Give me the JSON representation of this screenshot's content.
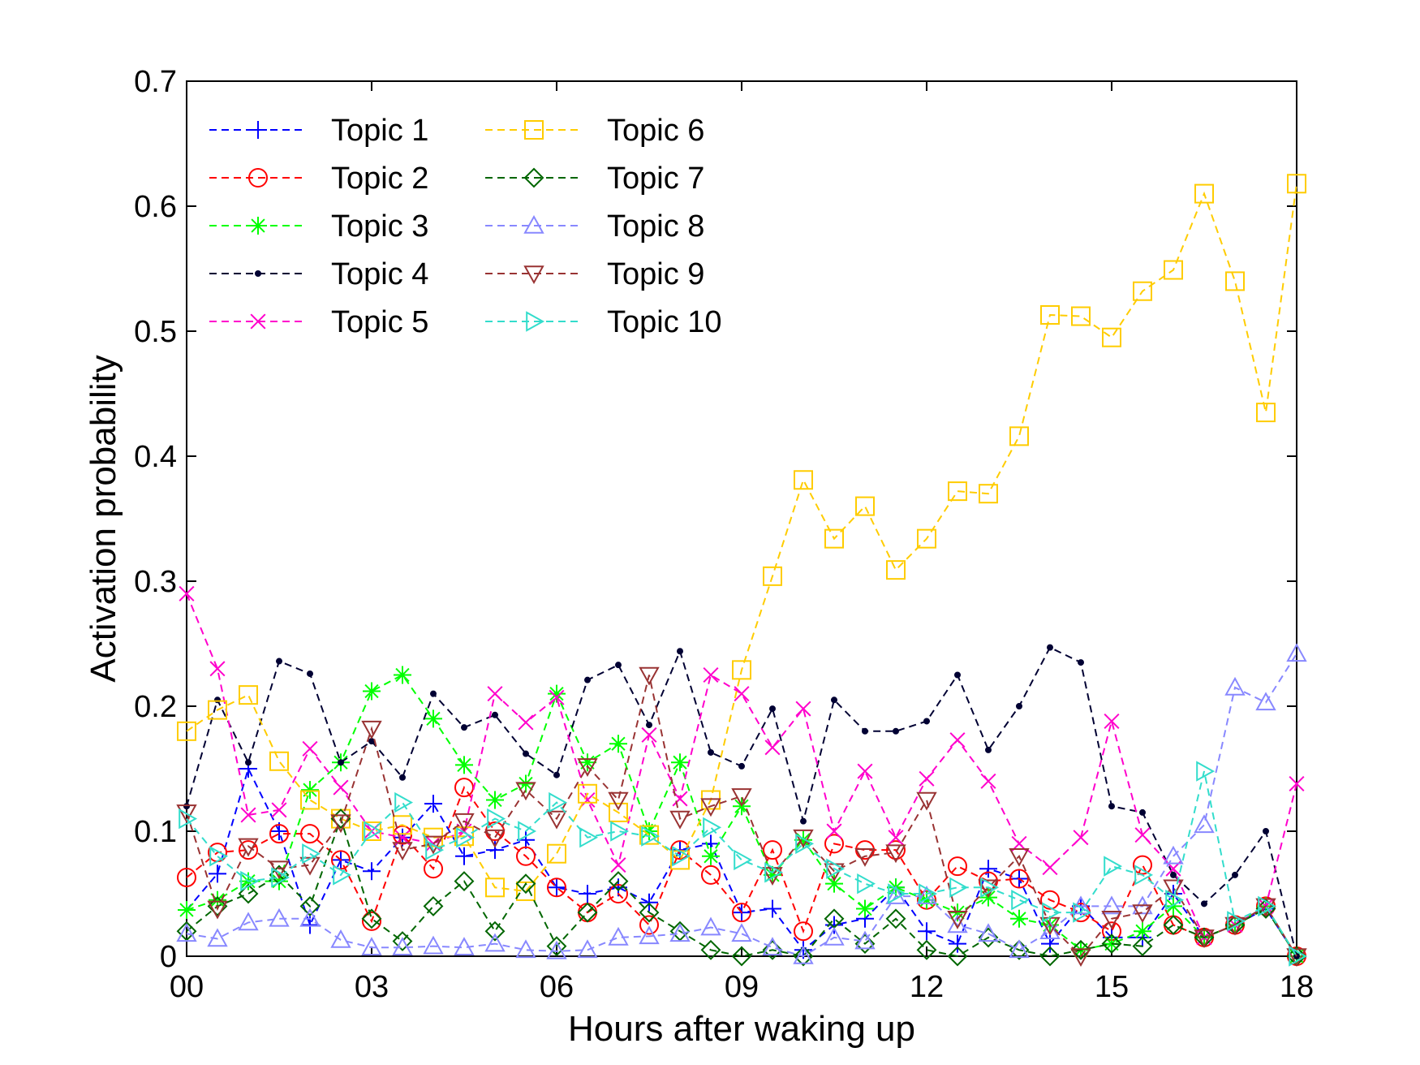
{
  "chart_data": {
    "type": "line",
    "title": "",
    "xlabel": "Hours after waking up",
    "ylabel": "Activation probability",
    "xlim": [
      0,
      18
    ],
    "ylim": [
      0,
      0.7
    ],
    "xticks": [
      0,
      3,
      6,
      9,
      12,
      15,
      18
    ],
    "xtick_labels": [
      "00",
      "03",
      "06",
      "09",
      "12",
      "15",
      "18"
    ],
    "yticks": [
      0,
      0.1,
      0.2,
      0.3,
      0.4,
      0.5,
      0.6,
      0.7
    ],
    "ytick_labels": [
      "0",
      "0.1",
      "0.2",
      "0.3",
      "0.4",
      "0.5",
      "0.6",
      "0.7"
    ],
    "grid": false,
    "legend_position": "top-left, two columns",
    "x": [
      0,
      0.5,
      1,
      1.5,
      2,
      2.5,
      3,
      3.5,
      4,
      4.5,
      5,
      5.5,
      6,
      6.5,
      7,
      7.5,
      8,
      8.5,
      9,
      9.5,
      10,
      10.5,
      11,
      11.5,
      12,
      12.5,
      13,
      13.5,
      14,
      14.5,
      15,
      15.5,
      16,
      16.5,
      17,
      17.5,
      18
    ],
    "series": [
      {
        "name": "Topic 1",
        "color": "#0000ff",
        "marker": "plus",
        "values": [
          0.037,
          0.066,
          0.15,
          0.1,
          0.025,
          0.077,
          0.068,
          0.095,
          0.122,
          0.08,
          0.085,
          0.093,
          0.055,
          0.05,
          0.055,
          0.043,
          0.085,
          0.09,
          0.035,
          0.038,
          0.005,
          0.025,
          0.03,
          0.055,
          0.02,
          0.01,
          0.07,
          0.062,
          0.01,
          0.04,
          0.015,
          0.015,
          0.05,
          0.015,
          0.025,
          0.038,
          0.0
        ]
      },
      {
        "name": "Topic 2",
        "color": "#ff0000",
        "marker": "circle",
        "values": [
          0.063,
          0.083,
          0.085,
          0.098,
          0.098,
          0.077,
          0.028,
          0.097,
          0.07,
          0.135,
          0.1,
          0.08,
          0.055,
          0.035,
          0.05,
          0.025,
          0.085,
          0.065,
          0.035,
          0.085,
          0.02,
          0.09,
          0.085,
          0.085,
          0.045,
          0.072,
          0.06,
          0.062,
          0.045,
          0.035,
          0.02,
          0.073,
          0.025,
          0.015,
          0.025,
          0.04,
          0.0
        ]
      },
      {
        "name": "Topic 3",
        "color": "#00ff00",
        "marker": "asterisk",
        "values": [
          0.037,
          0.045,
          0.06,
          0.06,
          0.133,
          0.155,
          0.212,
          0.225,
          0.19,
          0.153,
          0.125,
          0.138,
          0.21,
          0.155,
          0.17,
          0.1,
          0.155,
          0.08,
          0.12,
          0.065,
          0.093,
          0.058,
          0.038,
          0.055,
          0.045,
          0.035,
          0.047,
          0.03,
          0.025,
          0.005,
          0.01,
          0.02,
          0.04,
          0.015,
          0.025,
          0.04,
          0.0
        ]
      },
      {
        "name": "Topic 4",
        "color": "#000033",
        "marker": "dot",
        "values": [
          0.12,
          0.205,
          0.155,
          0.236,
          0.226,
          0.155,
          0.172,
          0.143,
          0.21,
          0.183,
          0.193,
          0.162,
          0.145,
          0.221,
          0.233,
          0.185,
          0.244,
          0.163,
          0.152,
          0.198,
          0.108,
          0.205,
          0.18,
          0.18,
          0.188,
          0.225,
          0.165,
          0.2,
          0.247,
          0.235,
          0.12,
          0.115,
          0.065,
          0.042,
          0.065,
          0.1,
          0.0
        ]
      },
      {
        "name": "Topic 5",
        "color": "#ff00cc",
        "marker": "cross",
        "values": [
          0.29,
          0.23,
          0.113,
          0.117,
          0.166,
          0.135,
          0.1,
          0.095,
          0.09,
          0.1,
          0.21,
          0.187,
          0.207,
          0.125,
          0.073,
          0.177,
          0.126,
          0.225,
          0.21,
          0.167,
          0.198,
          0.1,
          0.148,
          0.095,
          0.142,
          0.173,
          0.14,
          0.09,
          0.071,
          0.095,
          0.188,
          0.097,
          0.07,
          0.015,
          0.025,
          0.04,
          0.138
        ]
      },
      {
        "name": "Topic 6",
        "color": "#ffcc00",
        "marker": "square",
        "values": [
          0.18,
          0.197,
          0.209,
          0.156,
          0.125,
          0.11,
          0.1,
          0.105,
          0.095,
          0.096,
          0.055,
          0.052,
          0.082,
          0.13,
          0.115,
          0.097,
          0.077,
          0.125,
          0.229,
          0.304,
          0.381,
          0.334,
          0.36,
          0.309,
          0.334,
          0.372,
          0.37,
          0.416,
          0.513,
          0.512,
          0.495,
          0.532,
          0.549,
          0.61,
          0.54,
          0.435,
          0.618
        ]
      },
      {
        "name": "Topic 7",
        "color": "#006600",
        "marker": "diamond",
        "values": [
          0.02,
          0.04,
          0.05,
          0.065,
          0.04,
          0.11,
          0.03,
          0.012,
          0.04,
          0.06,
          0.02,
          0.058,
          0.008,
          0.035,
          0.06,
          0.035,
          0.02,
          0.005,
          0.0,
          0.005,
          0.0,
          0.03,
          0.01,
          0.03,
          0.005,
          0.0,
          0.015,
          0.005,
          0.0,
          0.005,
          0.01,
          0.008,
          0.025,
          0.015,
          0.025,
          0.038,
          0.0
        ]
      },
      {
        "name": "Topic 8",
        "color": "#8888ff",
        "marker": "triangle-up",
        "values": [
          0.018,
          0.014,
          0.027,
          0.03,
          0.03,
          0.013,
          0.007,
          0.007,
          0.008,
          0.007,
          0.01,
          0.005,
          0.004,
          0.005,
          0.015,
          0.016,
          0.018,
          0.023,
          0.018,
          0.007,
          0.0,
          0.015,
          0.012,
          0.048,
          0.048,
          0.025,
          0.018,
          0.005,
          0.02,
          0.04,
          0.04,
          0.04,
          0.08,
          0.105,
          0.215,
          0.203,
          0.242
        ]
      },
      {
        "name": "Topic 9",
        "color": "#993333",
        "marker": "triangle-down",
        "values": [
          0.115,
          0.038,
          0.088,
          0.07,
          0.073,
          0.107,
          0.182,
          0.085,
          0.09,
          0.108,
          0.095,
          0.133,
          0.11,
          0.152,
          0.125,
          0.225,
          0.11,
          0.12,
          0.128,
          0.065,
          0.095,
          0.068,
          0.08,
          0.083,
          0.125,
          0.03,
          0.055,
          0.08,
          0.025,
          0.0,
          0.03,
          0.035,
          0.055,
          0.015,
          0.025,
          0.04,
          0.0
        ]
      },
      {
        "name": "Topic 10",
        "color": "#33ddcc",
        "marker": "triangle-right",
        "values": [
          0.11,
          0.08,
          0.06,
          0.063,
          0.082,
          0.065,
          0.1,
          0.123,
          0.085,
          0.095,
          0.11,
          0.1,
          0.123,
          0.095,
          0.1,
          0.096,
          0.08,
          0.103,
          0.077,
          0.067,
          0.09,
          0.07,
          0.058,
          0.05,
          0.05,
          0.055,
          0.055,
          0.045,
          0.035,
          0.035,
          0.072,
          0.065,
          0.045,
          0.148,
          0.028,
          0.04,
          0.0
        ]
      }
    ]
  }
}
